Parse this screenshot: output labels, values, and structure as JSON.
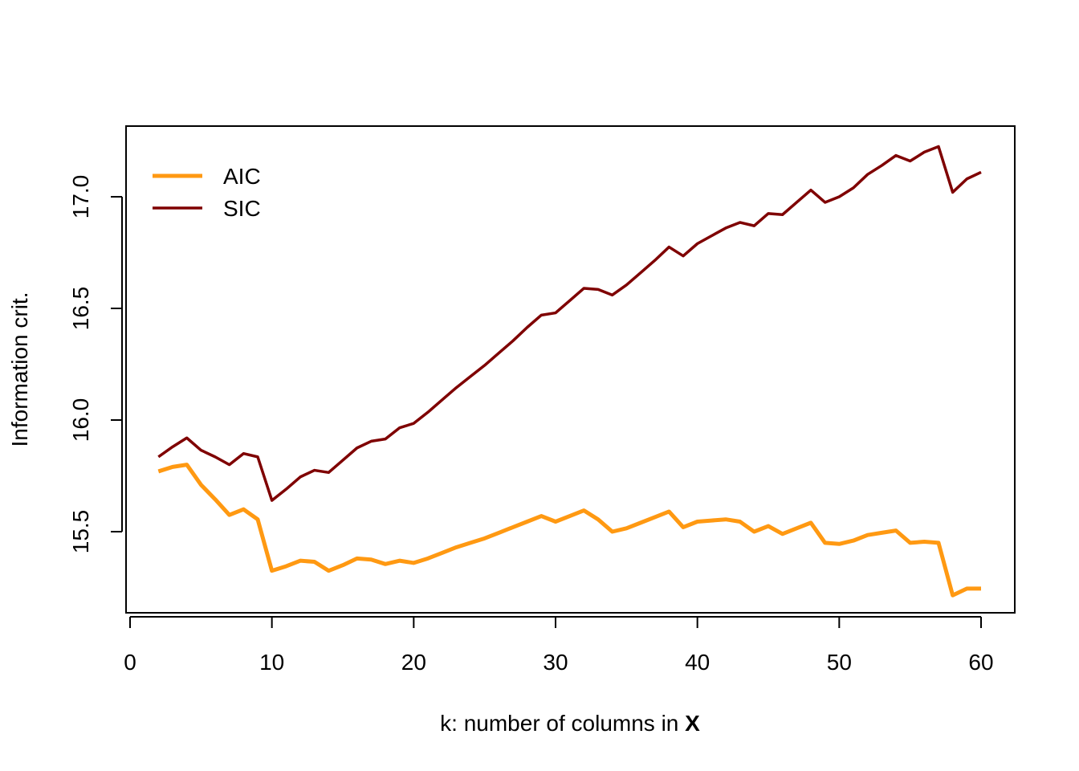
{
  "chart_data": {
    "type": "line",
    "title": "",
    "xlabel": "k: number of columns in ",
    "xlabel_bold": "X",
    "ylabel": "Information crit.",
    "xlim": [
      0,
      60
    ],
    "ylim": [
      15.2,
      17.2
    ],
    "x_ticks": [
      0,
      10,
      20,
      30,
      40,
      50,
      60
    ],
    "x_tick_labels": [
      "0",
      "10",
      "20",
      "30",
      "40",
      "50",
      "60"
    ],
    "y_ticks": [
      15.5,
      16.0,
      16.5,
      17.0
    ],
    "y_tick_labels": [
      "15.5",
      "16.0",
      "16.5",
      "17.0"
    ],
    "grid": false,
    "legend_position": "top-left",
    "x": [
      2,
      3,
      4,
      5,
      6,
      7,
      8,
      9,
      10,
      11,
      12,
      13,
      14,
      15,
      16,
      17,
      18,
      19,
      20,
      21,
      22,
      23,
      24,
      25,
      26,
      27,
      28,
      29,
      30,
      31,
      32,
      33,
      34,
      35,
      36,
      37,
      38,
      39,
      40,
      41,
      42,
      43,
      44,
      45,
      46,
      47,
      48,
      49,
      50,
      51,
      52,
      53,
      54,
      55,
      56,
      57,
      58,
      59,
      60
    ],
    "series": [
      {
        "name": "AIC",
        "color": "#FF9912",
        "line_weight": "thick",
        "values": [
          15.77,
          15.79,
          15.8,
          15.71,
          15.645,
          15.575,
          15.6,
          15.555,
          15.325,
          15.345,
          15.37,
          15.365,
          15.325,
          15.35,
          15.38,
          15.375,
          15.355,
          15.37,
          15.36,
          15.38,
          15.405,
          15.43,
          15.45,
          15.47,
          15.495,
          15.52,
          15.545,
          15.57,
          15.545,
          15.57,
          15.595,
          15.555,
          15.5,
          15.515,
          15.54,
          15.565,
          15.59,
          15.52,
          15.545,
          15.55,
          15.555,
          15.545,
          15.5,
          15.525,
          15.49,
          15.515,
          15.54,
          15.45,
          15.445,
          15.46,
          15.485,
          15.495,
          15.505,
          15.45,
          15.455,
          15.45,
          15.215,
          15.245,
          15.245
        ]
      },
      {
        "name": "SIC",
        "color": "#7F0000",
        "line_weight": "normal",
        "values": [
          15.835,
          15.88,
          15.92,
          15.865,
          15.835,
          15.8,
          15.85,
          15.835,
          15.64,
          15.69,
          15.745,
          15.775,
          15.765,
          15.82,
          15.875,
          15.905,
          15.915,
          15.965,
          15.985,
          16.035,
          16.09,
          16.145,
          16.195,
          16.245,
          16.3,
          16.355,
          16.415,
          16.47,
          16.48,
          16.535,
          16.59,
          16.585,
          16.56,
          16.605,
          16.66,
          16.715,
          16.775,
          16.735,
          16.79,
          16.825,
          16.86,
          16.885,
          16.87,
          16.925,
          16.92,
          16.975,
          17.03,
          16.975,
          17.0,
          17.04,
          17.1,
          17.14,
          17.185,
          17.16,
          17.2,
          17.225,
          17.02,
          17.08,
          17.11
        ]
      }
    ]
  }
}
